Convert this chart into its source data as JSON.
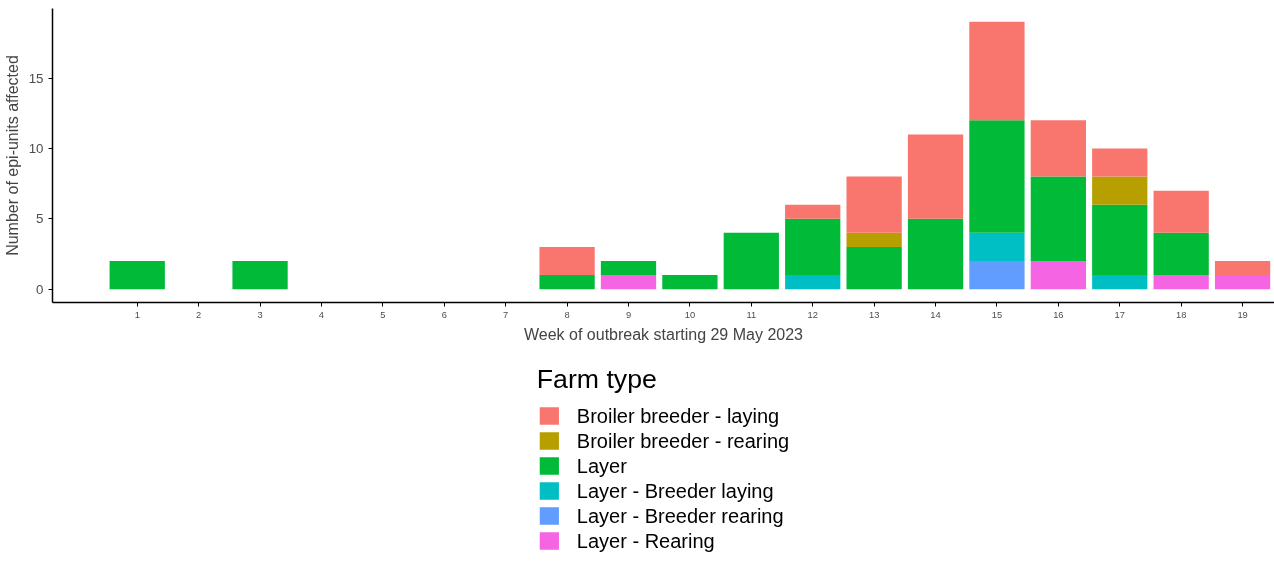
{
  "chart_data": {
    "type": "bar",
    "stacked": true,
    "xlabel": "Week of outbreak starting 29 May 2023",
    "ylabel": "Number of epi-units affected",
    "legend_title": "Farm type",
    "legend": "bottom",
    "grid": false,
    "categories": [
      "1",
      "2",
      "3",
      "4",
      "5",
      "6",
      "7",
      "8",
      "9",
      "10",
      "11",
      "12",
      "13",
      "14",
      "15",
      "16",
      "17",
      "18",
      "19"
    ],
    "ylim": [
      -0.95,
      19.95
    ],
    "yticks": [
      0,
      5,
      10,
      15
    ],
    "series": [
      {
        "name": "Layer - Rearing",
        "color": "#f564e3",
        "values": [
          null,
          null,
          null,
          null,
          null,
          null,
          null,
          null,
          1,
          null,
          null,
          null,
          null,
          null,
          null,
          2,
          null,
          1,
          1
        ]
      },
      {
        "name": "Layer - Breeder rearing",
        "color": "#619cff",
        "values": [
          null,
          null,
          null,
          null,
          null,
          null,
          null,
          null,
          null,
          null,
          null,
          null,
          null,
          null,
          2,
          null,
          null,
          null,
          null
        ]
      },
      {
        "name": "Layer - Breeder laying",
        "color": "#00bfc4",
        "values": [
          null,
          null,
          null,
          null,
          null,
          null,
          null,
          null,
          null,
          null,
          null,
          1,
          null,
          null,
          2,
          null,
          1,
          null,
          null
        ]
      },
      {
        "name": "Layer",
        "color": "#00ba38",
        "values": [
          2,
          null,
          2,
          null,
          null,
          null,
          null,
          1,
          1,
          1,
          4,
          4,
          3,
          5,
          8,
          6,
          5,
          3,
          null
        ]
      },
      {
        "name": "Broiler breeder - rearing",
        "color": "#b79f00",
        "values": [
          null,
          null,
          null,
          null,
          null,
          null,
          null,
          null,
          null,
          null,
          null,
          null,
          1,
          null,
          null,
          null,
          2,
          null,
          null
        ]
      },
      {
        "name": "Broiler breeder - laying",
        "color": "#f8766d",
        "values": [
          null,
          null,
          null,
          null,
          null,
          null,
          null,
          2,
          null,
          null,
          null,
          1,
          4,
          6,
          7,
          4,
          2,
          3,
          1
        ]
      }
    ]
  }
}
